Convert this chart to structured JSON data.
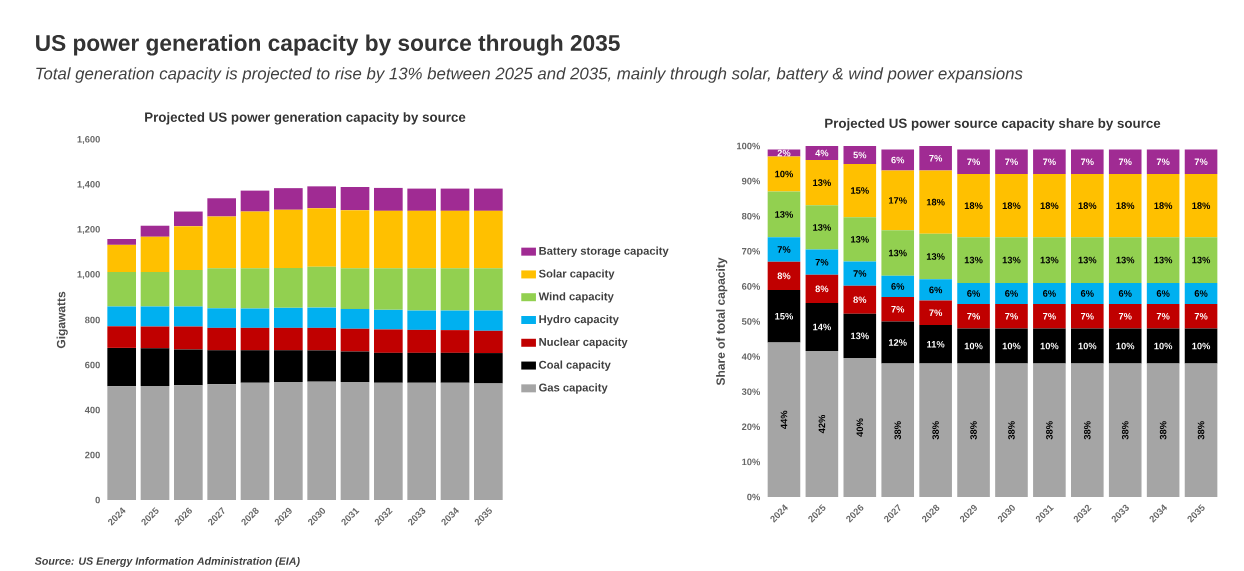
{
  "chart_data": [
    {
      "type": "other",
      "title": "US power generation capacity by source through 2035",
      "subtitle": "Total generation capacity is projected to rise by 13% between 2025 and 2035, mainly through solar, battery & wind power expansions",
      "annotations": [
        "Source: US Energy Information Administration (EIA)"
      ]
    },
    {
      "type": "bar",
      "stacked": true,
      "title": "Projected US power generation capacity by source",
      "ylabel": "Gigawatts",
      "categories": [
        "2024",
        "2025",
        "2026",
        "2027",
        "2028",
        "2029",
        "2030",
        "2031",
        "2032",
        "2033",
        "2034",
        "2035"
      ],
      "ylim": [
        0,
        1600
      ],
      "yticks": [
        0,
        200,
        400,
        600,
        800,
        {
          "value": 1000,
          "label": "1,000"
        },
        {
          "value": 1200,
          "label": "1,200"
        },
        {
          "value": 1400,
          "label": "1,400"
        },
        {
          "value": 1600,
          "label": "1,600"
        }
      ],
      "legend": "right",
      "series": [
        {
          "name": "Gas capacity",
          "color": "#a5a5a5",
          "values": [
            505,
            507,
            510,
            514,
            521,
            524,
            526,
            524,
            521,
            521,
            521,
            518
          ]
        },
        {
          "name": "Coal capacity",
          "color": "#000000",
          "values": [
            171,
            167,
            159,
            151,
            144,
            141,
            139,
            136,
            133,
            133,
            133,
            135
          ]
        },
        {
          "name": "Nuclear capacity",
          "color": "#c00000",
          "values": [
            96,
            97,
            102,
            100,
            100,
            100,
            100,
            101,
            104,
            102,
            101,
            99
          ]
        },
        {
          "name": "Hydro capacity",
          "color": "#00b0f0",
          "values": [
            88,
            89,
            89,
            87,
            86,
            89,
            90,
            88,
            87,
            86,
            87,
            90
          ]
        },
        {
          "name": "Wind capacity",
          "color": "#92d050",
          "values": [
            153,
            153,
            162,
            178,
            179,
            177,
            182,
            181,
            185,
            188,
            188,
            188
          ]
        },
        {
          "name": "Solar capacity",
          "color": "#ffc000",
          "values": [
            121,
            157,
            195,
            230,
            252,
            259,
            260,
            258,
            255,
            255,
            255,
            255
          ]
        },
        {
          "name": "Battery storage capacity",
          "color": "#a02b93",
          "values": [
            26,
            49,
            65,
            81,
            93,
            96,
            97,
            103,
            102,
            99,
            99,
            99
          ]
        }
      ]
    },
    {
      "type": "bar",
      "stacked": true,
      "title": "Projected US power source capacity share by source",
      "ylabel": "Share of total capacity",
      "categories": [
        "2024",
        "2025",
        "2026",
        "2027",
        "2028",
        "2029",
        "2030",
        "2031",
        "2032",
        "2033",
        "2034",
        "2035"
      ],
      "ylim": [
        0,
        100
      ],
      "yticks": [
        {
          "value": 0,
          "label": "0%"
        },
        {
          "value": 10,
          "label": "10%"
        },
        {
          "value": 20,
          "label": "20%"
        },
        {
          "value": 30,
          "label": "30%"
        },
        {
          "value": 40,
          "label": "40%"
        },
        {
          "value": 50,
          "label": "50%"
        },
        {
          "value": 60,
          "label": "60%"
        },
        {
          "value": 70,
          "label": "70%"
        },
        {
          "value": 80,
          "label": "80%"
        },
        {
          "value": 90,
          "label": "90%"
        },
        {
          "value": 100,
          "label": "100%"
        }
      ],
      "series": [
        {
          "color": "#a5a5a5",
          "values": [
            44,
            41.6,
            39.6,
            38,
            38,
            38,
            38,
            38,
            38,
            38,
            38,
            38
          ],
          "value_labels": [
            "44%",
            "42%",
            "40%",
            "38%",
            "38%",
            "38%",
            "38%",
            "38%",
            "38%",
            "38%",
            "38%",
            "38%"
          ]
        },
        {
          "color": "#000000",
          "values": [
            15,
            13.7,
            12.6,
            12,
            11,
            10,
            10,
            10,
            10,
            10,
            10,
            10
          ],
          "value_labels": [
            "15%",
            "14%",
            "13%",
            "12%",
            "11%",
            "10%",
            "10%",
            "10%",
            "10%",
            "10%",
            "10%",
            "10%"
          ]
        },
        {
          "color": "#c00000",
          "values": [
            8,
            8,
            8,
            7,
            7,
            7,
            7,
            7,
            7,
            7,
            7,
            7
          ],
          "value_labels": [
            "8%",
            "8%",
            "8%",
            "7%",
            "7%",
            "7%",
            "7%",
            "7%",
            "7%",
            "7%",
            "7%",
            "7%"
          ]
        },
        {
          "color": "#00b0f0",
          "values": [
            7,
            7.2,
            6.9,
            6,
            6,
            6,
            6,
            6,
            6,
            6,
            6,
            6
          ],
          "value_labels": [
            "7%",
            "7%",
            "7%",
            "6%",
            "6%",
            "6%",
            "6%",
            "6%",
            "6%",
            "6%",
            "6%",
            "6%"
          ]
        },
        {
          "color": "#92d050",
          "values": [
            13,
            12.6,
            12.6,
            13,
            13,
            13,
            13,
            13,
            13,
            13,
            13,
            13
          ],
          "value_labels": [
            "13%",
            "13%",
            "13%",
            "13%",
            "13%",
            "13%",
            "13%",
            "13%",
            "13%",
            "13%",
            "13%",
            "13%"
          ]
        },
        {
          "color": "#ffc000",
          "values": [
            10,
            12.9,
            15.2,
            17,
            18,
            18,
            18,
            18,
            18,
            18,
            18,
            18
          ],
          "value_labels": [
            "10%",
            "13%",
            "15%",
            "17%",
            "18%",
            "18%",
            "18%",
            "18%",
            "18%",
            "18%",
            "18%",
            "18%"
          ]
        },
        {
          "color": "#a02b93",
          "values": [
            2,
            4,
            5.1,
            6,
            7,
            7,
            7,
            7,
            7,
            7,
            7,
            7
          ],
          "value_labels": [
            "2%",
            "4%",
            "5%",
            "6%",
            "7%",
            "7%",
            "7%",
            "7%",
            "7%",
            "7%",
            "7%",
            "7%"
          ]
        }
      ]
    }
  ]
}
